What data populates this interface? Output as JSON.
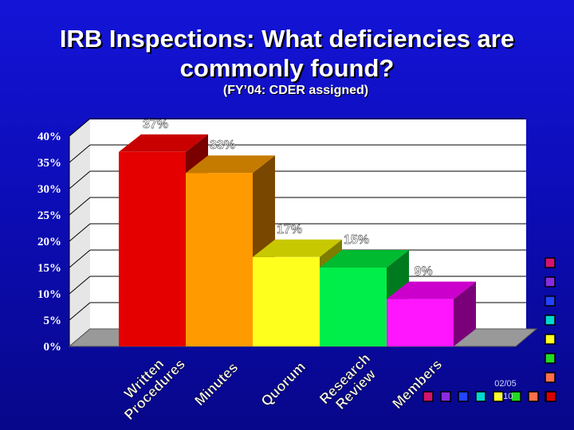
{
  "title_line1": "IRB Inspections:  What deficiencies are",
  "title_line2": "commonly found?",
  "subtitle": "(FY’04: CDER assigned)",
  "footnote_line1": "02/05",
  "footnote_line2": "=10",
  "colors": {
    "background": "#0d0db8",
    "plot_wall": "#ffffff",
    "floor": "#999999"
  },
  "chart_data": {
    "type": "bar",
    "title": "IRB Inspections:  What deficiencies are commonly found?",
    "subtitle": "(FY’04: CDER assigned)",
    "categories": [
      "Written Procedures",
      "Minutes",
      "Quorum",
      "Research Review",
      "Members"
    ],
    "category_labels": [
      [
        "Written",
        "Procedures"
      ],
      [
        "Minutes"
      ],
      [
        "Quorum"
      ],
      [
        "Research",
        "Review"
      ],
      [
        "Members"
      ]
    ],
    "values": [
      37,
      33,
      17,
      15,
      9
    ],
    "value_labels": [
      "37%",
      "33%",
      "17%",
      "15%",
      "9%"
    ],
    "yticks": [
      0,
      5,
      10,
      15,
      20,
      25,
      30,
      35,
      40
    ],
    "ytick_labels": [
      "0%",
      "5%",
      "10%",
      "15%",
      "20%",
      "25%",
      "30%",
      "35%",
      "40%"
    ],
    "ylim": [
      0,
      40
    ],
    "grid": true,
    "three_d": true,
    "bar_colors": [
      {
        "front": "#e50000",
        "top": "#c80000",
        "side": "#7a0000"
      },
      {
        "front": "#ff9a00",
        "top": "#c57a00",
        "side": "#7a4700"
      },
      {
        "front": "#ffff1e",
        "top": "#c8c800",
        "side": "#7d7d00"
      },
      {
        "front": "#00ee4a",
        "top": "#00bb30",
        "side": "#007a1e"
      },
      {
        "front": "#ff16ff",
        "top": "#cc00cc",
        "side": "#7a007a"
      }
    ],
    "swatches_right": [
      "#d4146e",
      "#8a2be2",
      "#2244ff",
      "#00d8d0",
      "#ffff22",
      "#22dd22",
      "#ff6f4a",
      "#dd0000"
    ],
    "swatches_bottom": [
      "#d4146e",
      "#8a2be2",
      "#2244ff",
      "#00d8d0",
      "#ffff22",
      "#22dd22",
      "#ff6f4a",
      "#dd0000"
    ]
  }
}
